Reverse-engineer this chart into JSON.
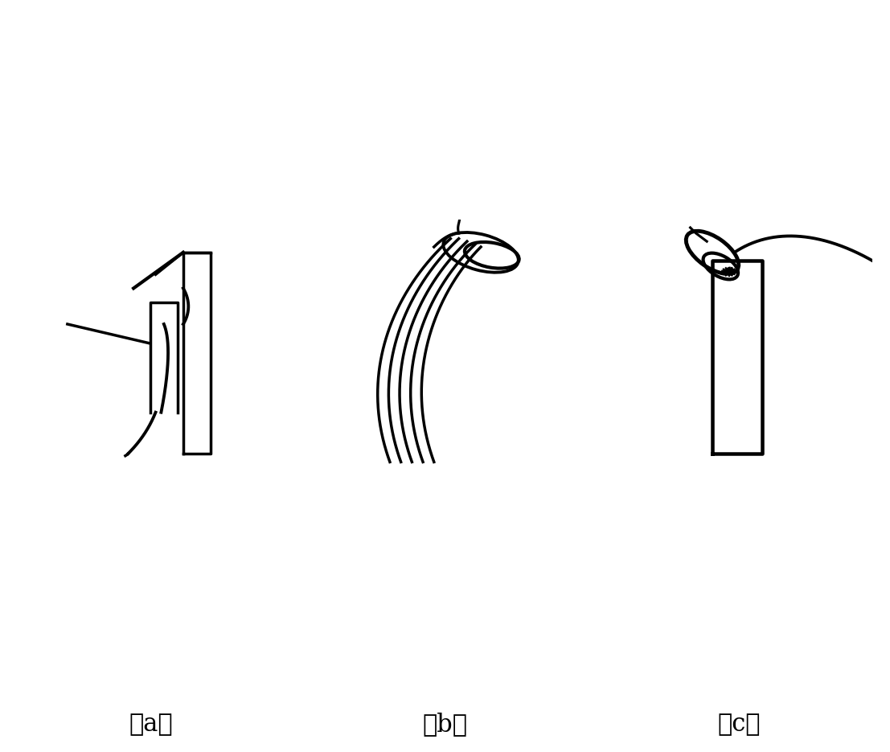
{
  "fig_width": 11.07,
  "fig_height": 9.35,
  "bg_color": "#ffffff",
  "line_color": "#000000",
  "lw": 2.5,
  "labels": [
    "（a）",
    "（b）",
    "（c）"
  ],
  "label_fontsize": 22
}
